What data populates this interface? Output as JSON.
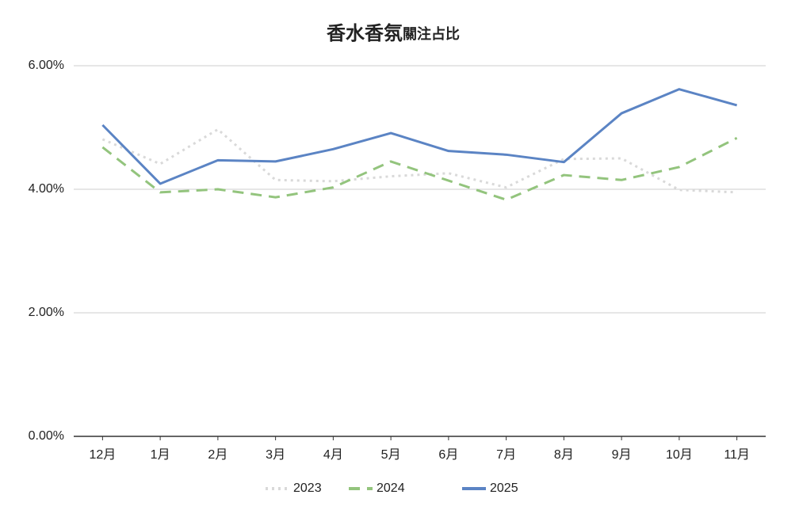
{
  "chart_data": {
    "type": "line",
    "title": [
      "香水香氛",
      "關注占比"
    ],
    "categories": [
      "12月",
      "1月",
      "2月",
      "3月",
      "4月",
      "5月",
      "6月",
      "7月",
      "8月",
      "9月",
      "10月",
      "11月"
    ],
    "series": [
      {
        "name": "2023",
        "color": "#d9d9d9",
        "dash": "dotted",
        "values": [
          4.81,
          4.41,
          4.97,
          4.15,
          4.13,
          4.21,
          4.26,
          4.03,
          4.49,
          4.5,
          3.99,
          3.95
        ]
      },
      {
        "name": "2024",
        "color": "#93c47d",
        "dash": "dashed",
        "values": [
          4.68,
          3.95,
          4.0,
          3.87,
          4.03,
          4.45,
          4.14,
          3.83,
          4.23,
          4.15,
          4.36,
          4.83
        ]
      },
      {
        "name": "2025",
        "color": "#5b84c4",
        "dash": "solid",
        "values": [
          5.04,
          4.09,
          4.47,
          4.45,
          4.65,
          4.91,
          4.62,
          4.56,
          4.44,
          5.23,
          5.62,
          5.36
        ]
      }
    ],
    "ylim": [
      0,
      6
    ],
    "yticks": [
      {
        "value": 0,
        "label": "0.00%"
      },
      {
        "value": 2,
        "label": "2.00%"
      },
      {
        "value": 4,
        "label": "4.00%"
      },
      {
        "value": 6,
        "label": "6.00%"
      }
    ],
    "grid": true,
    "legend": "bottom"
  }
}
